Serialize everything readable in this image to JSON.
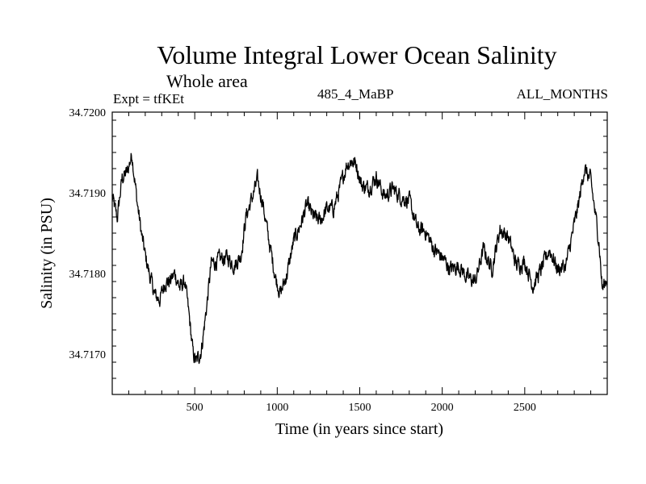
{
  "chart_data": {
    "type": "line",
    "title": "Volume Integral Lower Ocean Salinity",
    "subtitle": "Whole area",
    "annotations": {
      "experiment": "Expt = tfKEt",
      "run": "485_4_MaBP",
      "period": "ALL_MONTHS"
    },
    "xlabel": "Time (in years since start)",
    "ylabel": "Salinity (in PSU)",
    "xlim": [
      0,
      3000
    ],
    "ylim": [
      34.7165,
      34.72
    ],
    "xticks": [
      500,
      1000,
      1500,
      2000,
      2500
    ],
    "xtick_labels": [
      "500",
      "1000",
      "1500",
      "2000",
      "2500"
    ],
    "yticks": [
      34.717,
      34.718,
      34.719,
      34.72
    ],
    "ytick_labels": [
      "34.7170",
      "34.7180",
      "34.7190",
      "34.7200"
    ],
    "line_color": "#000000",
    "series": [
      {
        "x": [
          0,
          30,
          60,
          90,
          120,
          150,
          180,
          200,
          230,
          260,
          290,
          320,
          350,
          380,
          410,
          440,
          470,
          490,
          510,
          540,
          570,
          600,
          630,
          660,
          700,
          740,
          780,
          810,
          850,
          880,
          910,
          950,
          990,
          1020,
          1060,
          1100,
          1140,
          1180,
          1220,
          1260,
          1300,
          1340,
          1380,
          1420,
          1450,
          1480,
          1510,
          1550,
          1600,
          1650,
          1700,
          1750,
          1800,
          1850,
          1900,
          1950,
          2000,
          2050,
          2100,
          2150,
          2200,
          2250,
          2300,
          2350,
          2400,
          2450,
          2500,
          2550,
          2600,
          2650,
          2700,
          2750,
          2800,
          2830,
          2860,
          2900,
          2930,
          2950,
          2970,
          3000
        ],
        "y": [
          34.71895,
          34.71868,
          34.71918,
          34.71925,
          34.71948,
          34.7189,
          34.71845,
          34.71822,
          34.71795,
          34.71772,
          34.71768,
          34.7179,
          34.7179,
          34.718,
          34.71782,
          34.7179,
          34.7174,
          34.717,
          34.7169,
          34.71705,
          34.71755,
          34.71812,
          34.71815,
          34.71818,
          34.7182,
          34.7181,
          34.71822,
          34.7187,
          34.71895,
          34.71915,
          34.7189,
          34.7184,
          34.71795,
          34.71775,
          34.718,
          34.7184,
          34.7186,
          34.71885,
          34.7187,
          34.71865,
          34.7188,
          34.7188,
          34.71905,
          34.71935,
          34.7194,
          34.71935,
          34.7191,
          34.71905,
          34.7192,
          34.71895,
          34.71905,
          34.71895,
          34.7189,
          34.71855,
          34.71852,
          34.7183,
          34.7182,
          34.71805,
          34.7181,
          34.71795,
          34.7179,
          34.7183,
          34.71805,
          34.71855,
          34.71845,
          34.7181,
          34.71815,
          34.71785,
          34.71805,
          34.7183,
          34.71805,
          34.7181,
          34.7186,
          34.7189,
          34.7193,
          34.71915,
          34.7187,
          34.7184,
          34.7178,
          34.71795
        ]
      }
    ]
  }
}
